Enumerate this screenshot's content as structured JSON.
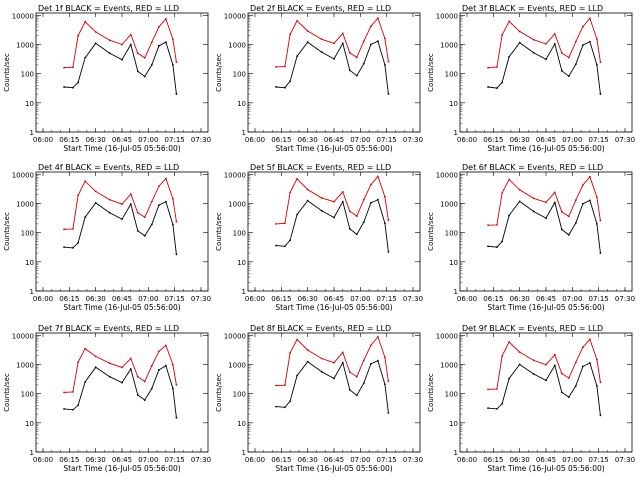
{
  "figure": {
    "common_xlabel": "Start Time (16-Jul-05 05:56:00)",
    "common_ylabel": "Counts/sec",
    "x_tick_labels": [
      "06:00",
      "06:15",
      "06:30",
      "06:45",
      "07:00",
      "07:15",
      "07:30"
    ],
    "y_tick_labels": [
      "1",
      "10",
      "100",
      "1000",
      "10000"
    ],
    "colors": {
      "events": "#000000",
      "lld": "#dd0000",
      "frame": "#000000"
    }
  },
  "chart_data": [
    {
      "type": "line",
      "title": "Det 1f BLACK = Events, RED = LLD",
      "xlabel": "Start Time (16-Jul-05 05:56:00)",
      "ylabel": "Counts/sec",
      "y_scale": "log",
      "ylim": [
        1,
        12000
      ],
      "xlim": [
        "05:56",
        "07:34"
      ],
      "x": [
        "06:12",
        "06:17",
        "06:20",
        "06:24",
        "06:30",
        "06:38",
        "06:45",
        "06:50",
        "06:54",
        "06:58",
        "07:02",
        "07:06",
        "07:10",
        "07:14",
        "07:16"
      ],
      "series": [
        {
          "name": "Events",
          "values": [
            35,
            33,
            50,
            350,
            1100,
            500,
            300,
            1000,
            120,
            80,
            200,
            900,
            1200,
            200,
            20
          ]
        },
        {
          "name": "LLD",
          "values": [
            160,
            165,
            2000,
            6000,
            2700,
            1400,
            1000,
            2200,
            500,
            350,
            1200,
            4000,
            7500,
            1500,
            250
          ]
        }
      ]
    },
    {
      "type": "line",
      "title": "Det 2f BLACK = Events, RED = LLD",
      "xlabel": "Start Time (16-Jul-05 05:56:00)",
      "ylabel": "Counts/sec",
      "y_scale": "log",
      "ylim": [
        1,
        12000
      ],
      "xlim": [
        "05:56",
        "07:34"
      ],
      "x": [
        "06:12",
        "06:17",
        "06:20",
        "06:24",
        "06:30",
        "06:38",
        "06:45",
        "06:50",
        "06:54",
        "06:58",
        "07:02",
        "07:06",
        "07:10",
        "07:14",
        "07:16"
      ],
      "series": [
        {
          "name": "Events",
          "values": [
            35,
            33,
            55,
            400,
            1200,
            550,
            320,
            1100,
            130,
            85,
            220,
            1000,
            1300,
            200,
            20
          ]
        },
        {
          "name": "LLD",
          "values": [
            170,
            175,
            2200,
            6500,
            2900,
            1500,
            1100,
            2400,
            520,
            360,
            1300,
            4200,
            8000,
            1600,
            260
          ]
        }
      ]
    },
    {
      "type": "line",
      "title": "Det 3f BLACK = Events, RED = LLD",
      "xlabel": "Start Time (16-Jul-05 05:56:00)",
      "ylabel": "Counts/sec",
      "y_scale": "log",
      "ylim": [
        1,
        12000
      ],
      "xlim": [
        "05:56",
        "07:34"
      ],
      "x": [
        "06:12",
        "06:17",
        "06:20",
        "06:24",
        "06:30",
        "06:38",
        "06:45",
        "06:50",
        "06:54",
        "06:58",
        "07:02",
        "07:06",
        "07:10",
        "07:14",
        "07:16"
      ],
      "series": [
        {
          "name": "Events",
          "values": [
            35,
            32,
            50,
            380,
            1150,
            520,
            310,
            1050,
            125,
            82,
            210,
            950,
            1250,
            200,
            20
          ]
        },
        {
          "name": "LLD",
          "values": [
            160,
            170,
            2100,
            6200,
            2800,
            1450,
            1050,
            2300,
            510,
            355,
            1250,
            4100,
            7800,
            1550,
            250
          ]
        }
      ]
    },
    {
      "type": "line",
      "title": "Det 4f BLACK = Events, RED = LLD",
      "xlabel": "Start Time (16-Jul-05 05:56:00)",
      "ylabel": "Counts/sec",
      "y_scale": "log",
      "ylim": [
        1,
        12000
      ],
      "xlim": [
        "05:56",
        "07:34"
      ],
      "x": [
        "06:12",
        "06:17",
        "06:20",
        "06:24",
        "06:30",
        "06:38",
        "06:45",
        "06:50",
        "06:54",
        "06:58",
        "07:02",
        "07:06",
        "07:10",
        "07:14",
        "07:16"
      ],
      "series": [
        {
          "name": "Events",
          "values": [
            32,
            30,
            45,
            340,
            1050,
            480,
            290,
            950,
            115,
            78,
            190,
            880,
            1150,
            190,
            18
          ]
        },
        {
          "name": "LLD",
          "values": [
            130,
            135,
            1900,
            5800,
            2600,
            1350,
            950,
            2100,
            480,
            340,
            1150,
            3900,
            7200,
            1450,
            240
          ]
        }
      ]
    },
    {
      "type": "line",
      "title": "Det 5f BLACK = Events, RED = LLD",
      "xlabel": "Start Time (16-Jul-05 05:56:00)",
      "ylabel": "Counts/sec",
      "y_scale": "log",
      "ylim": [
        1,
        12000
      ],
      "xlim": [
        "05:56",
        "07:34"
      ],
      "x": [
        "06:12",
        "06:17",
        "06:20",
        "06:24",
        "06:30",
        "06:38",
        "06:45",
        "06:50",
        "06:54",
        "06:58",
        "07:02",
        "07:06",
        "07:10",
        "07:14",
        "07:16"
      ],
      "series": [
        {
          "name": "Events",
          "values": [
            36,
            34,
            55,
            420,
            1250,
            560,
            330,
            1150,
            135,
            88,
            230,
            1050,
            1350,
            210,
            22
          ]
        },
        {
          "name": "LLD",
          "values": [
            200,
            210,
            2400,
            7000,
            3000,
            1550,
            1150,
            2500,
            540,
            370,
            1350,
            4400,
            8500,
            1700,
            270
          ]
        }
      ]
    },
    {
      "type": "line",
      "title": "Det 6f BLACK = Events, RED = LLD",
      "xlabel": "Start Time (16-Jul-05 05:56:00)",
      "ylabel": "Counts/sec",
      "y_scale": "log",
      "ylim": [
        1,
        12000
      ],
      "xlim": [
        "05:56",
        "07:34"
      ],
      "x": [
        "06:12",
        "06:17",
        "06:20",
        "06:24",
        "06:30",
        "06:38",
        "06:45",
        "06:50",
        "06:54",
        "06:58",
        "07:02",
        "07:06",
        "07:10",
        "07:14",
        "07:16"
      ],
      "series": [
        {
          "name": "Events",
          "values": [
            34,
            32,
            50,
            390,
            1180,
            530,
            315,
            1080,
            128,
            84,
            215,
            980,
            1280,
            200,
            20
          ]
        },
        {
          "name": "LLD",
          "values": [
            180,
            185,
            2300,
            6600,
            2950,
            1500,
            1100,
            2400,
            520,
            360,
            1300,
            4300,
            8200,
            1650,
            260
          ]
        }
      ]
    },
    {
      "type": "line",
      "title": "Det 7f BLACK = Events, RED = LLD",
      "xlabel": "Start Time (16-Jul-05 05:56:00)",
      "ylabel": "Counts/sec",
      "y_scale": "log",
      "ylim": [
        1,
        12000
      ],
      "xlim": [
        "05:56",
        "07:34"
      ],
      "x": [
        "06:12",
        "06:17",
        "06:20",
        "06:24",
        "06:30",
        "06:38",
        "06:45",
        "06:50",
        "06:54",
        "06:58",
        "07:02",
        "07:06",
        "07:10",
        "07:14",
        "07:16"
      ],
      "series": [
        {
          "name": "Events",
          "values": [
            30,
            28,
            40,
            250,
            800,
            380,
            240,
            700,
            90,
            60,
            150,
            650,
            900,
            150,
            15
          ]
        },
        {
          "name": "LLD",
          "values": [
            110,
            115,
            1200,
            3500,
            1900,
            1100,
            800,
            1600,
            380,
            260,
            900,
            2800,
            4500,
            1000,
            200
          ]
        }
      ]
    },
    {
      "type": "line",
      "title": "Det 8f BLACK = Events, RED = LLD",
      "xlabel": "Start Time (16-Jul-05 05:56:00)",
      "ylabel": "Counts/sec",
      "y_scale": "log",
      "ylim": [
        1,
        12000
      ],
      "xlim": [
        "05:56",
        "07:34"
      ],
      "x": [
        "06:12",
        "06:17",
        "06:20",
        "06:24",
        "06:30",
        "06:38",
        "06:45",
        "06:50",
        "06:54",
        "06:58",
        "07:02",
        "07:06",
        "07:10",
        "07:14",
        "07:16"
      ],
      "series": [
        {
          "name": "Events",
          "values": [
            36,
            34,
            55,
            420,
            1250,
            560,
            330,
            1150,
            135,
            88,
            230,
            1050,
            1350,
            210,
            22
          ]
        },
        {
          "name": "LLD",
          "values": [
            190,
            195,
            2500,
            7200,
            3100,
            1600,
            1150,
            2600,
            550,
            380,
            1400,
            4500,
            8800,
            1750,
            270
          ]
        }
      ]
    },
    {
      "type": "line",
      "title": "Det 9f BLACK = Events, RED = LLD",
      "xlabel": "Start Time (16-Jul-05 05:56:00)",
      "ylabel": "Counts/sec",
      "y_scale": "log",
      "ylim": [
        1,
        12000
      ],
      "xlim": [
        "05:56",
        "07:34"
      ],
      "x": [
        "06:12",
        "06:17",
        "06:20",
        "06:24",
        "06:30",
        "06:38",
        "06:45",
        "06:50",
        "06:54",
        "06:58",
        "07:02",
        "07:06",
        "07:10",
        "07:14",
        "07:16"
      ],
      "series": [
        {
          "name": "Events",
          "values": [
            32,
            30,
            45,
            330,
            1000,
            470,
            285,
            930,
            112,
            76,
            185,
            860,
            1120,
            185,
            18
          ]
        },
        {
          "name": "LLD",
          "values": [
            140,
            145,
            1950,
            5900,
            2650,
            1380,
            980,
            2150,
            490,
            345,
            1180,
            3950,
            7300,
            1480,
            245
          ]
        }
      ]
    }
  ]
}
